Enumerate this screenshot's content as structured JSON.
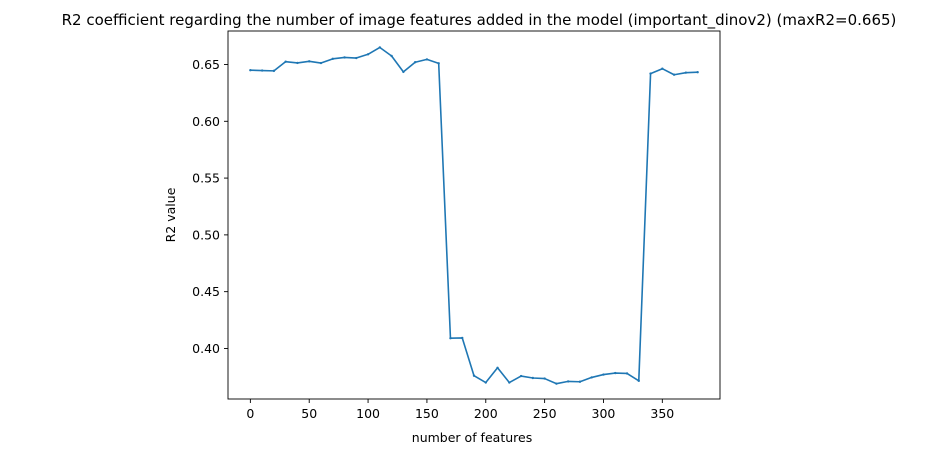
{
  "chart_data": {
    "type": "line",
    "title": "R2 coefficient regarding the number of image features added in the model (important_dinov2) (maxR2=0.665)",
    "xlabel": "number of features",
    "ylabel": "R2 value",
    "xlim": [
      -19,
      399
    ],
    "ylim": [
      0.3555,
      0.6795
    ],
    "xticks": [
      0,
      50,
      100,
      150,
      200,
      250,
      300,
      350
    ],
    "yticks": [
      0.4,
      0.45,
      0.5,
      0.55,
      0.6,
      0.65
    ],
    "xtick_labels": [
      "0",
      "50",
      "100",
      "150",
      "200",
      "250",
      "300",
      "350"
    ],
    "ytick_labels": [
      "0.40",
      "0.45",
      "0.50",
      "0.55",
      "0.60",
      "0.65"
    ],
    "grid": false,
    "series": [
      {
        "color": "#1f77b4",
        "x": [
          0,
          10,
          20,
          30,
          40,
          50,
          60,
          70,
          80,
          90,
          100,
          110,
          120,
          130,
          140,
          150,
          160,
          170,
          180,
          190,
          200,
          210,
          220,
          230,
          240,
          250,
          260,
          270,
          280,
          290,
          300,
          310,
          320,
          330,
          340,
          350,
          360,
          370,
          380
        ],
        "y": [
          0.645,
          0.6447,
          0.6444,
          0.6525,
          0.6514,
          0.6528,
          0.6513,
          0.655,
          0.6562,
          0.6557,
          0.659,
          0.665,
          0.6575,
          0.6435,
          0.652,
          0.6545,
          0.651,
          0.409,
          0.4093,
          0.376,
          0.37,
          0.383,
          0.37,
          0.3757,
          0.374,
          0.3735,
          0.369,
          0.371,
          0.3707,
          0.3745,
          0.377,
          0.3783,
          0.378,
          0.3715,
          0.642,
          0.6463,
          0.641,
          0.6428,
          0.6432
        ]
      }
    ]
  }
}
